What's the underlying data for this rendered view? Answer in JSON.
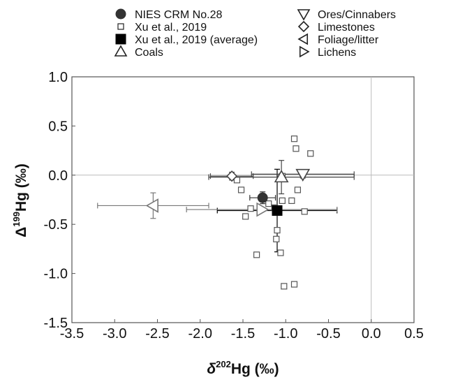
{
  "chart_data": {
    "type": "scatter",
    "xlabel": {
      "prefix": "δ",
      "sup": "202",
      "main": "Hg (‰)"
    },
    "ylabel": {
      "prefix": "Δ",
      "sup": "199",
      "main": "Hg (‰)"
    },
    "xlim": [
      -3.5,
      0.5
    ],
    "ylim": [
      -1.5,
      1.0
    ],
    "xticks": [
      "-3.5",
      "-3.0",
      "-2.5",
      "-2.0",
      "-1.5",
      "-1.0",
      "-0.5",
      "0.0",
      "0.5"
    ],
    "yticks": [
      "1.0",
      "0.5",
      "0.0",
      "-0.5",
      "-1.0",
      "-1.5"
    ],
    "zero_lines": true,
    "grid": false,
    "legend_position": "top",
    "series": [
      {
        "name": "NIES CRM No.28",
        "marker": "circle-filled",
        "color": "#333333",
        "points": [
          {
            "x": -1.27,
            "y": -0.23,
            "xerr": 0.15,
            "yerr": 0.06
          }
        ]
      },
      {
        "name": "Xu et al., 2019",
        "marker": "square-open",
        "color": "#555555",
        "points": [
          {
            "x": -0.9,
            "y": 0.37
          },
          {
            "x": -0.88,
            "y": 0.27
          },
          {
            "x": -0.71,
            "y": 0.22
          },
          {
            "x": -1.04,
            "y": -0.01
          },
          {
            "x": -1.57,
            "y": -0.05
          },
          {
            "x": -1.52,
            "y": -0.15
          },
          {
            "x": -0.86,
            "y": -0.15
          },
          {
            "x": -1.04,
            "y": -0.26
          },
          {
            "x": -0.93,
            "y": -0.26
          },
          {
            "x": -1.2,
            "y": -0.29
          },
          {
            "x": -1.13,
            "y": -0.33
          },
          {
            "x": -1.41,
            "y": -0.34
          },
          {
            "x": -1.3,
            "y": -0.35
          },
          {
            "x": -1.47,
            "y": -0.42
          },
          {
            "x": -0.78,
            "y": -0.37
          },
          {
            "x": -1.1,
            "y": -0.56
          },
          {
            "x": -1.11,
            "y": -0.65
          },
          {
            "x": -1.06,
            "y": -0.79
          },
          {
            "x": -1.34,
            "y": -0.81
          },
          {
            "x": -1.02,
            "y": -1.13
          },
          {
            "x": -0.9,
            "y": -1.11
          }
        ]
      },
      {
        "name": "Xu et al., 2019 (average)",
        "marker": "square-filled",
        "color": "#000000",
        "points": [
          {
            "x": -1.1,
            "y": -0.36,
            "xerr": 0.7,
            "yerr": 0.42
          }
        ]
      },
      {
        "name": "Coals",
        "marker": "triangle-up",
        "color": "#444444",
        "points": [
          {
            "x": -1.05,
            "y": -0.02,
            "xerr": 0.85,
            "yerr": 0.17
          }
        ]
      },
      {
        "name": "Ores/Cinnabers",
        "marker": "triangle-down",
        "color": "#444444",
        "points": [
          {
            "x": -0.8,
            "y": 0.01,
            "xerr": 0.6,
            "yerr": 0.04
          }
        ]
      },
      {
        "name": "Limestones",
        "marker": "diamond",
        "color": "#444444",
        "points": [
          {
            "x": -1.63,
            "y": -0.01,
            "xerr": 0.25,
            "yerr": 0.04
          }
        ]
      },
      {
        "name": "Foliage/litter",
        "marker": "triangle-left",
        "color": "#777777",
        "points": [
          {
            "x": -2.55,
            "y": -0.31,
            "xerr": 0.65,
            "yerr": 0.13
          }
        ]
      },
      {
        "name": "Lichens",
        "marker": "triangle-right",
        "color": "#777777",
        "points": [
          {
            "x": -1.28,
            "y": -0.35,
            "xerr": 0.88,
            "yerr": 0.0
          }
        ]
      }
    ]
  }
}
